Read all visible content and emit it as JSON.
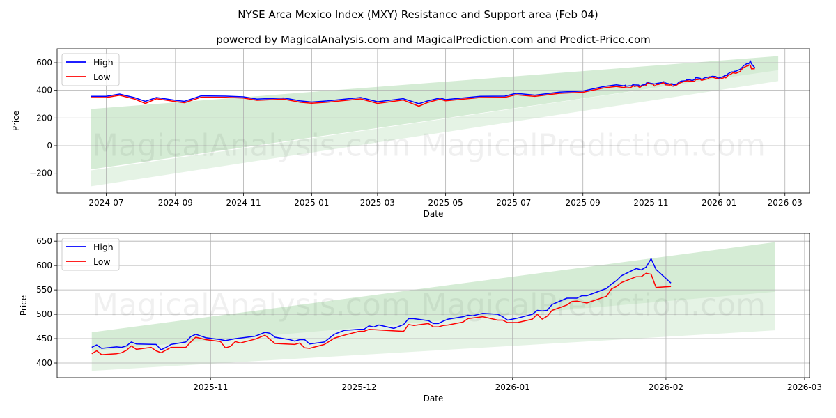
{
  "title": "NYSE Arca Mexico Index (MXY) Resistance and Support area (Feb 04)",
  "subtitle": "powered by MagicalAnalysis.com and MagicalPrediction.com and Predict-Price.com",
  "watermarks": [
    "MagicalAnalysis.com",
    "MagicalPrediction.com"
  ],
  "colors": {
    "high": "#0000ff",
    "low": "#ff0000",
    "band": "#2ca02c",
    "grid": "#b0b0b0"
  },
  "chart_data": [
    {
      "type": "line",
      "xlabel": "Date",
      "ylabel": "Price",
      "xlim": [
        "2024-05-18",
        "2026-03-23"
      ],
      "ylim": [
        -343,
        701
      ],
      "grid": true,
      "legend": {
        "position": "top-left",
        "entries": [
          "High",
          "Low"
        ]
      },
      "xticks": [
        "2024-07",
        "2024-09",
        "2024-11",
        "2025-01",
        "2025-03",
        "2025-05",
        "2025-07",
        "2025-09",
        "2025-11",
        "2026-01",
        "2026-03"
      ],
      "yticks": [
        -200,
        0,
        200,
        400,
        600
      ],
      "bands": [
        {
          "name": "support-band",
          "x": [
            "2024-06-17",
            "2026-02-23"
          ],
          "lower": [
            -295,
            467
          ],
          "upper": [
            -180,
            546
          ],
          "opacity": 0.12
        },
        {
          "name": "resistance-band",
          "x": [
            "2024-06-17",
            "2026-02-23"
          ],
          "lower": [
            -172,
            546
          ],
          "upper": [
            265,
            648
          ],
          "opacity": 0.2
        }
      ],
      "series": [
        {
          "name": "High",
          "x": [
            "2024-06-17",
            "2024-07-01",
            "2024-07-13",
            "2024-07-17",
            "2024-07-26",
            "2024-08-05",
            "2024-08-15",
            "2024-09-01",
            "2024-09-09",
            "2024-09-24",
            "2024-10-16",
            "2024-11-01",
            "2024-11-13",
            "2024-12-07",
            "2024-12-22",
            "2025-01-01",
            "2025-01-15",
            "2025-02-14",
            "2025-03-01",
            "2025-03-24",
            "2025-04-07",
            "2025-04-15",
            "2025-04-26",
            "2025-05-01",
            "2025-06-01",
            "2025-06-23",
            "2025-07-03",
            "2025-07-20",
            "2025-08-11",
            "2025-09-01",
            "2025-09-20",
            "2025-10-01"
          ],
          "values": [
            357,
            357,
            373,
            365,
            348,
            320,
            348,
            328,
            320,
            360,
            358,
            353,
            337,
            345,
            323,
            315,
            323,
            348,
            317,
            340,
            303,
            323,
            345,
            333,
            357,
            358,
            378,
            365,
            387,
            395,
            428,
            440
          ]
        },
        {
          "name": "Low",
          "x": [
            "2024-06-17",
            "2024-07-01",
            "2024-07-13",
            "2024-07-17",
            "2024-07-26",
            "2024-08-05",
            "2024-08-15",
            "2024-09-01",
            "2024-09-09",
            "2024-09-24",
            "2024-10-16",
            "2024-11-01",
            "2024-11-13",
            "2024-12-07",
            "2024-12-22",
            "2025-01-01",
            "2025-01-15",
            "2025-02-14",
            "2025-03-01",
            "2025-03-24",
            "2025-04-07",
            "2025-04-15",
            "2025-04-26",
            "2025-05-01",
            "2025-06-01",
            "2025-06-23",
            "2025-07-03",
            "2025-07-20",
            "2025-08-11",
            "2025-09-01",
            "2025-09-20",
            "2025-10-01"
          ],
          "values": [
            348,
            348,
            364,
            356,
            338,
            305,
            339,
            318,
            310,
            350,
            349,
            344,
            328,
            336,
            313,
            306,
            314,
            338,
            305,
            330,
            285,
            312,
            336,
            324,
            348,
            349,
            368,
            356,
            378,
            386,
            418,
            428
          ]
        }
      ]
    },
    {
      "type": "line",
      "xlabel": "Date",
      "ylabel": "Price",
      "xlim": [
        "2025-10-01",
        "2026-03-02"
      ],
      "ylim": [
        370,
        666
      ],
      "grid": true,
      "legend": {
        "position": "top-left",
        "entries": [
          "High",
          "Low"
        ]
      },
      "xticks": [
        "2025-11",
        "2025-12",
        "2026-01",
        "2026-02",
        "2026-03"
      ],
      "yticks": [
        400,
        450,
        500,
        550,
        600,
        650
      ],
      "bands": [
        {
          "name": "support-band",
          "x": [
            "2025-10-08",
            "2026-02-23"
          ],
          "lower": [
            384,
            467
          ],
          "upper": [
            425,
            546
          ],
          "opacity": 0.12
        },
        {
          "name": "resistance-band",
          "x": [
            "2025-10-08",
            "2026-02-23"
          ],
          "lower": [
            425,
            546
          ],
          "upper": [
            463,
            648
          ],
          "opacity": 0.2
        }
      ],
      "series": [
        {
          "name": "High",
          "x": [
            "2025-10-08",
            "2025-10-09",
            "2025-10-10",
            "2025-10-13",
            "2025-10-14",
            "2025-10-15",
            "2025-10-16",
            "2025-10-17",
            "2025-10-21",
            "2025-10-22",
            "2025-10-23",
            "2025-10-24",
            "2025-10-27",
            "2025-10-28",
            "2025-10-29",
            "2025-10-31",
            "2025-11-03",
            "2025-11-04",
            "2025-11-05",
            "2025-11-06",
            "2025-11-10",
            "2025-11-11",
            "2025-11-12",
            "2025-11-13",
            "2025-11-14",
            "2025-11-17",
            "2025-11-18",
            "2025-11-19",
            "2025-11-20",
            "2025-11-21",
            "2025-11-24",
            "2025-11-26",
            "2025-11-28",
            "2025-12-01",
            "2025-12-02",
            "2025-12-03",
            "2025-12-04",
            "2025-12-05",
            "2025-12-08",
            "2025-12-10",
            "2025-12-11",
            "2025-12-12",
            "2025-12-15",
            "2025-12-16",
            "2025-12-17",
            "2025-12-18",
            "2025-12-19",
            "2025-12-22",
            "2025-12-23",
            "2025-12-24",
            "2025-12-26",
            "2025-12-29",
            "2025-12-30",
            "2025-12-31",
            "2026-01-02",
            "2026-01-05",
            "2026-01-06",
            "2026-01-07",
            "2026-01-08",
            "2026-01-09",
            "2026-01-12",
            "2026-01-14",
            "2026-01-15",
            "2026-01-16",
            "2026-01-20",
            "2026-01-21",
            "2026-01-22",
            "2026-01-23",
            "2026-01-26",
            "2026-01-27",
            "2026-01-28",
            "2026-01-29",
            "2026-01-30",
            "2026-02-02"
          ],
          "values": [
            432,
            437,
            430,
            433,
            432,
            435,
            443,
            439,
            438,
            427,
            432,
            438,
            443,
            454,
            459,
            452,
            448,
            446,
            448,
            450,
            455,
            459,
            463,
            461,
            453,
            448,
            445,
            448,
            448,
            439,
            443,
            459,
            467,
            469,
            469,
            476,
            474,
            478,
            471,
            479,
            491,
            491,
            487,
            481,
            481,
            486,
            490,
            495,
            498,
            497,
            502,
            500,
            495,
            488,
            492,
            500,
            508,
            507,
            508,
            520,
            533,
            533,
            538,
            538,
            553,
            562,
            569,
            579,
            594,
            591,
            597,
            614,
            592,
            564
          ]
        },
        {
          "name": "Low",
          "x": [
            "2025-10-08",
            "2025-10-09",
            "2025-10-10",
            "2025-10-13",
            "2025-10-14",
            "2025-10-15",
            "2025-10-16",
            "2025-10-17",
            "2025-10-20",
            "2025-10-21",
            "2025-10-22",
            "2025-10-24",
            "2025-10-27",
            "2025-10-28",
            "2025-10-29",
            "2025-10-31",
            "2025-11-03",
            "2025-11-04",
            "2025-11-05",
            "2025-11-06",
            "2025-11-07",
            "2025-11-10",
            "2025-11-12",
            "2025-11-14",
            "2025-11-18",
            "2025-11-19",
            "2025-11-20",
            "2025-11-21",
            "2025-11-24",
            "2025-11-26",
            "2025-11-28",
            "2025-12-01",
            "2025-12-02",
            "2025-12-03",
            "2025-12-08",
            "2025-12-10",
            "2025-12-11",
            "2025-12-12",
            "2025-12-15",
            "2025-12-16",
            "2025-12-17",
            "2025-12-18",
            "2025-12-19",
            "2025-12-22",
            "2025-12-23",
            "2025-12-26",
            "2025-12-29",
            "2025-12-30",
            "2025-12-31",
            "2026-01-02",
            "2026-01-05",
            "2026-01-06",
            "2026-01-07",
            "2026-01-08",
            "2026-01-09",
            "2026-01-12",
            "2026-01-13",
            "2026-01-14",
            "2026-01-16",
            "2026-01-20",
            "2026-01-21",
            "2026-01-22",
            "2026-01-23",
            "2026-01-26",
            "2026-01-27",
            "2026-01-28",
            "2026-01-29",
            "2026-01-30",
            "2026-02-02"
          ],
          "values": [
            419,
            425,
            417,
            419,
            421,
            426,
            435,
            428,
            432,
            425,
            421,
            432,
            432,
            443,
            453,
            448,
            444,
            431,
            434,
            444,
            441,
            449,
            457,
            440,
            438,
            441,
            431,
            430,
            438,
            451,
            457,
            465,
            465,
            469,
            466,
            465,
            479,
            477,
            481,
            474,
            474,
            477,
            478,
            484,
            491,
            495,
            488,
            488,
            483,
            483,
            490,
            500,
            490,
            496,
            508,
            519,
            526,
            527,
            523,
            537,
            552,
            557,
            565,
            577,
            577,
            584,
            582,
            555,
            557
          ]
        }
      ]
    }
  ]
}
